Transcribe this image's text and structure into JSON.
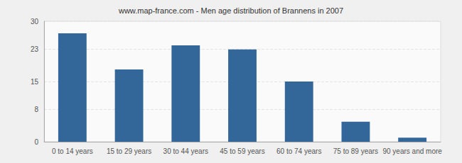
{
  "chart_data": {
    "type": "bar",
    "title": "www.map-france.com - Men age distribution of Brannens in 2007",
    "categories": [
      "0 to 14 years",
      "15 to 29 years",
      "30 to 44 years",
      "45 to 59 years",
      "60 to 74 years",
      "75 to 89 years",
      "90 years and more"
    ],
    "values": [
      27,
      18,
      24,
      23,
      15,
      5,
      1
    ],
    "color": "#336699",
    "ylim": [
      0,
      30
    ],
    "yticks": [
      0,
      8,
      15,
      23,
      30
    ],
    "grid": true
  }
}
